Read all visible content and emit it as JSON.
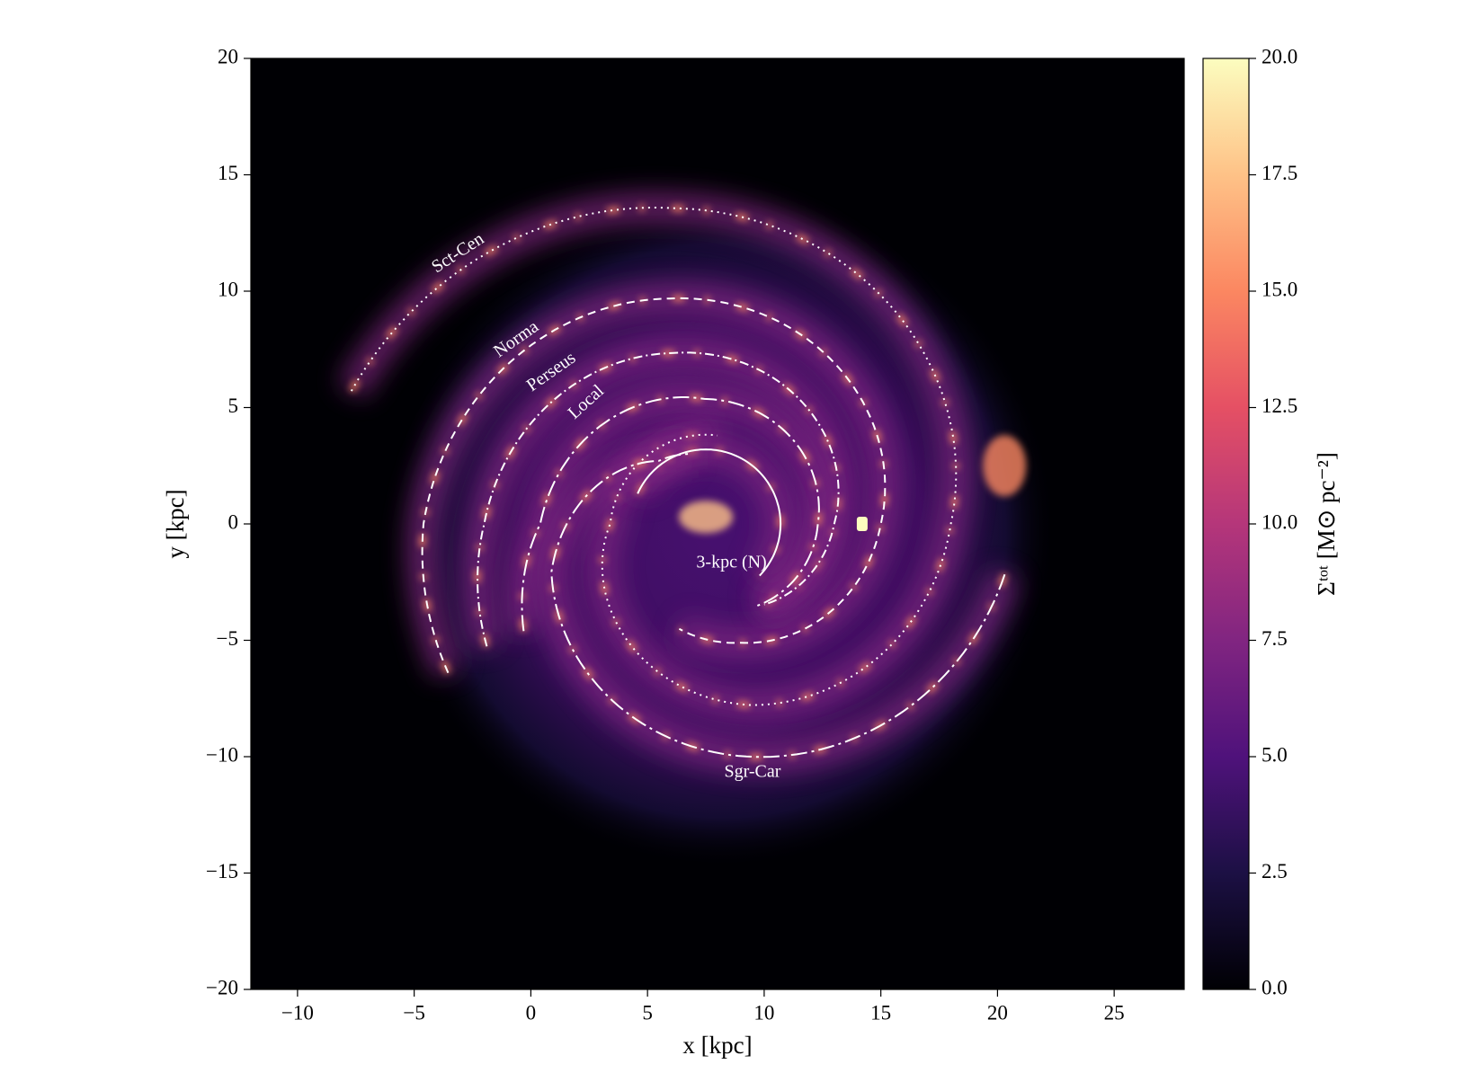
{
  "chart_data": {
    "type": "heatmap",
    "xlabel": "x [kpc]",
    "ylabel": "y [kpc]",
    "xlim": [
      -12,
      28
    ],
    "ylim": [
      -20,
      20
    ],
    "xticks": [
      {
        "value": -10,
        "label": "−10"
      },
      {
        "value": -5,
        "label": "−5"
      },
      0,
      5,
      10,
      15,
      20,
      25
    ],
    "yticks": [
      {
        "value": -20,
        "label": "−20"
      },
      {
        "value": -15,
        "label": "−15"
      },
      {
        "value": -10,
        "label": "−10"
      },
      {
        "value": -5,
        "label": "−5"
      },
      0,
      5,
      10,
      15,
      20
    ],
    "colormap": [
      "#000004",
      "#1c1044",
      "#4f127b",
      "#812581",
      "#b5367a",
      "#e55064",
      "#fb8761",
      "#fec287",
      "#fcfdbf"
    ],
    "colorbar": {
      "label": "Σᵗᵒᵗ [M⊙ pc⁻²]",
      "lim": [
        0,
        20
      ],
      "ticks": [
        {
          "value": 0,
          "label": "0.0"
        },
        2.5,
        {
          "value": 5,
          "label": "5.0"
        },
        7.5,
        {
          "value": 10,
          "label": "10.0"
        },
        12.5,
        {
          "value": 15,
          "label": "15.0"
        },
        17.5,
        {
          "value": 20,
          "label": "20.0"
        }
      ]
    },
    "annotations": [
      {
        "text": "Sct-Cen",
        "linestyle": "dotted"
      },
      {
        "text": "Norma",
        "linestyle": "dashed"
      },
      {
        "text": "Perseus",
        "linestyle": "dashdot"
      },
      {
        "text": "Local",
        "linestyle": "longdashdot"
      },
      {
        "text": "3-kpc (N)",
        "linestyle": "solid"
      },
      {
        "text": "Sgr-Car",
        "linestyle": "longdashdot"
      }
    ],
    "annotation_color": "#ffffff"
  }
}
